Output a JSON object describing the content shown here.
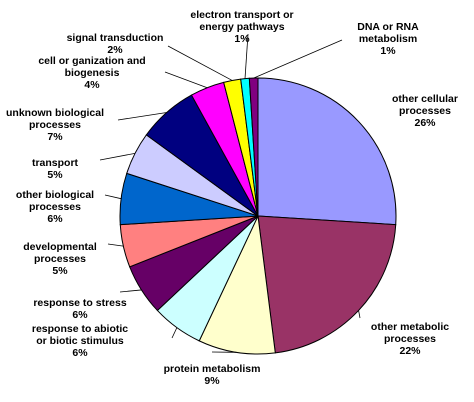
{
  "chart_data": {
    "type": "pie",
    "title": "",
    "legend": "none",
    "slices": [
      {
        "label": "other cellular processes",
        "lines": [
          "other cellular",
          "processes"
        ],
        "value": 26,
        "value_label": "26%",
        "color": "#9999FF"
      },
      {
        "label": "other metabolic processes",
        "lines": [
          "other metabolic",
          "processes"
        ],
        "value": 22,
        "value_label": "22%",
        "color": "#993366"
      },
      {
        "label": "protein metabolism",
        "lines": [
          "protein metabolism"
        ],
        "value": 9,
        "value_label": "9%",
        "color": "#FFFFCC"
      },
      {
        "label": "response to abiotic or biotic stimulus",
        "lines": [
          "response to abiotic",
          "or biotic stimulus"
        ],
        "value": 6,
        "value_label": "6%",
        "color": "#CCFFFF"
      },
      {
        "label": "response to stress",
        "lines": [
          "response to stress"
        ],
        "value": 6,
        "value_label": "6%",
        "color": "#660066"
      },
      {
        "label": "developmental processes",
        "lines": [
          "developmental",
          "processes"
        ],
        "value": 5,
        "value_label": "5%",
        "color": "#FF8080"
      },
      {
        "label": "other biological processes",
        "lines": [
          "other biological",
          "processes"
        ],
        "value": 6,
        "value_label": "6%",
        "color": "#0066CC"
      },
      {
        "label": "transport",
        "lines": [
          "transport"
        ],
        "value": 5,
        "value_label": "5%",
        "color": "#CCCCFF"
      },
      {
        "label": "unknown biological processes",
        "lines": [
          "unknown biological",
          "processes"
        ],
        "value": 7,
        "value_label": "7%",
        "color": "#000080"
      },
      {
        "label": "cell or ganization and biogenesis",
        "lines": [
          "cell or ganization and",
          "biogenesis"
        ],
        "value": 4,
        "value_label": "4%",
        "color": "#FF00FF"
      },
      {
        "label": "signal transduction",
        "lines": [
          "signal transduction"
        ],
        "value": 2,
        "value_label": "2%",
        "color": "#FFFF00"
      },
      {
        "label": "electron transport or energy pathways",
        "lines": [
          "electron transport or",
          "energy pathways"
        ],
        "value": 1,
        "value_label": "1%",
        "color": "#00FFFF"
      },
      {
        "label": "DNA or RNA metabolism",
        "lines": [
          "DNA or RNA",
          "metabolism"
        ],
        "value": 1,
        "value_label": "1%",
        "color": "#800080"
      }
    ]
  }
}
